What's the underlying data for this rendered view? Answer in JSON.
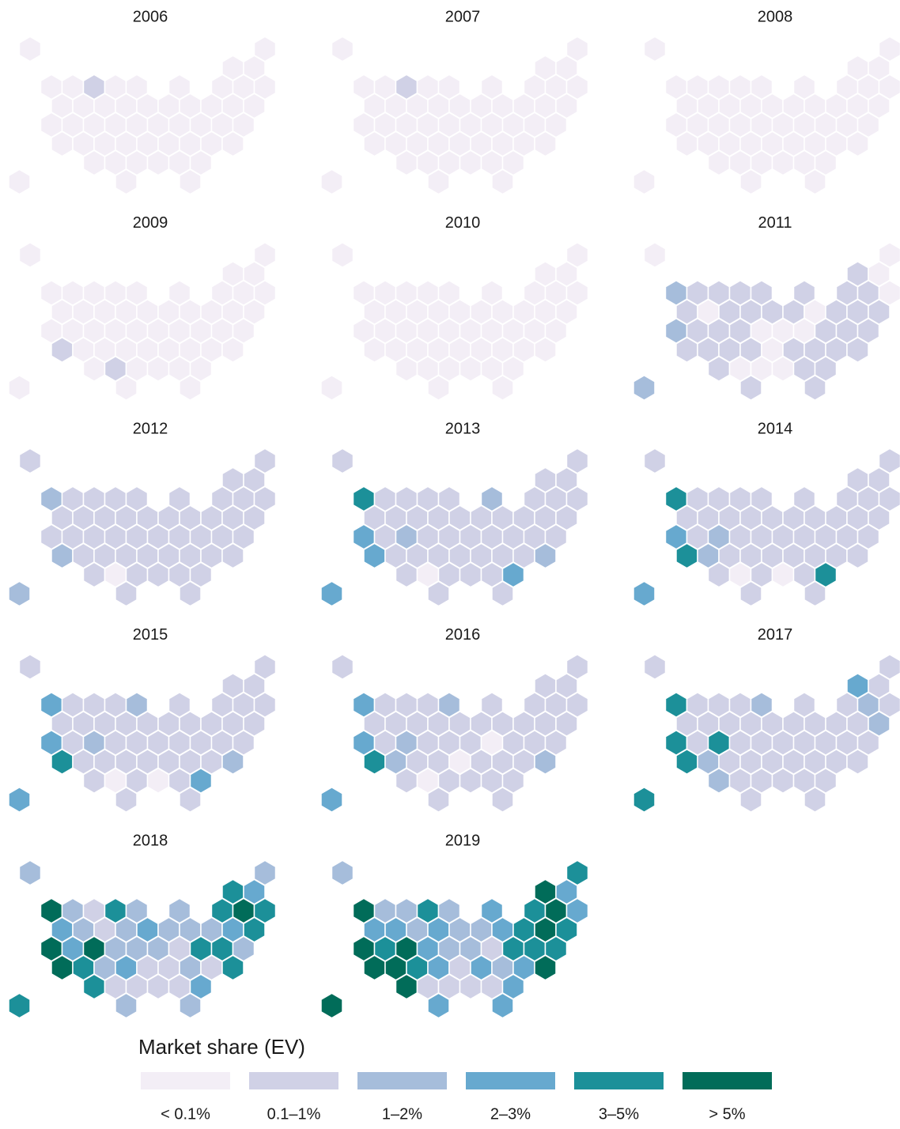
{
  "chart_data": {
    "type": "hexmap",
    "panels": [
      {
        "title": "2006",
        "values": [
          0,
          0,
          0,
          0,
          0,
          0,
          1,
          0,
          0,
          0,
          0,
          0,
          0,
          0,
          0,
          0,
          0,
          0,
          0,
          0,
          0,
          0,
          0,
          0,
          0,
          0,
          0,
          0,
          0,
          0,
          0,
          0,
          0,
          0,
          0,
          0,
          0,
          0,
          0,
          0,
          0,
          0,
          0,
          0,
          0,
          0,
          0,
          0,
          0,
          0,
          0
        ]
      },
      {
        "title": "2007",
        "values": [
          0,
          0,
          0,
          0,
          0,
          0,
          1,
          0,
          0,
          0,
          0,
          0,
          0,
          0,
          0,
          0,
          0,
          0,
          0,
          0,
          0,
          0,
          0,
          0,
          0,
          0,
          0,
          0,
          0,
          0,
          0,
          0,
          0,
          0,
          0,
          0,
          0,
          0,
          0,
          0,
          0,
          0,
          0,
          0,
          0,
          0,
          0,
          0,
          0,
          0,
          0
        ]
      },
      {
        "title": "2008",
        "values": [
          0,
          0,
          0,
          0,
          0,
          0,
          0,
          0,
          0,
          0,
          0,
          0,
          0,
          0,
          0,
          0,
          0,
          0,
          0,
          0,
          0,
          0,
          0,
          0,
          0,
          0,
          0,
          0,
          0,
          0,
          0,
          0,
          0,
          0,
          0,
          0,
          0,
          0,
          0,
          0,
          0,
          0,
          0,
          0,
          0,
          0,
          0,
          0,
          0,
          0,
          0
        ]
      },
      {
        "title": "2009",
        "values": [
          0,
          0,
          0,
          0,
          0,
          0,
          0,
          0,
          0,
          0,
          0,
          0,
          0,
          0,
          0,
          0,
          0,
          0,
          0,
          0,
          0,
          0,
          0,
          0,
          0,
          0,
          0,
          0,
          0,
          0,
          0,
          0,
          0,
          1,
          0,
          0,
          0,
          0,
          0,
          0,
          0,
          0,
          0,
          1,
          0,
          0,
          0,
          0,
          0,
          0,
          0
        ]
      },
      {
        "title": "2010",
        "values": [
          0,
          0,
          0,
          0,
          0,
          0,
          0,
          0,
          0,
          0,
          0,
          0,
          0,
          0,
          0,
          0,
          0,
          0,
          0,
          0,
          0,
          0,
          0,
          0,
          0,
          0,
          0,
          0,
          0,
          0,
          0,
          0,
          0,
          0,
          0,
          0,
          0,
          0,
          0,
          0,
          0,
          0,
          0,
          0,
          0,
          0,
          0,
          0,
          0,
          0,
          0
        ]
      },
      {
        "title": "2011",
        "values": [
          0,
          0,
          1,
          0,
          2,
          1,
          1,
          1,
          1,
          1,
          1,
          1,
          0,
          1,
          0,
          1,
          1,
          1,
          1,
          0,
          1,
          1,
          1,
          2,
          1,
          1,
          1,
          0,
          0,
          0,
          1,
          1,
          1,
          1,
          1,
          1,
          1,
          0,
          1,
          1,
          1,
          1,
          1,
          0,
          0,
          0,
          1,
          1,
          2,
          1,
          1
        ]
      },
      {
        "title": "2012",
        "values": [
          1,
          1,
          1,
          1,
          2,
          1,
          1,
          1,
          1,
          1,
          1,
          1,
          1,
          1,
          1,
          1,
          1,
          1,
          1,
          1,
          1,
          1,
          1,
          1,
          1,
          1,
          1,
          1,
          1,
          1,
          1,
          1,
          1,
          2,
          1,
          1,
          1,
          1,
          1,
          1,
          1,
          1,
          1,
          0,
          1,
          1,
          1,
          1,
          2,
          1,
          1
        ]
      },
      {
        "title": "2013",
        "values": [
          1,
          1,
          1,
          1,
          4,
          1,
          1,
          1,
          1,
          2,
          1,
          1,
          1,
          1,
          1,
          1,
          1,
          1,
          1,
          1,
          1,
          1,
          1,
          3,
          1,
          2,
          1,
          1,
          1,
          1,
          1,
          1,
          1,
          3,
          1,
          1,
          1,
          1,
          1,
          1,
          1,
          2,
          1,
          0,
          1,
          1,
          1,
          3,
          3,
          1,
          1
        ]
      },
      {
        "title": "2014",
        "values": [
          1,
          1,
          1,
          1,
          4,
          1,
          1,
          1,
          1,
          1,
          1,
          1,
          1,
          1,
          1,
          1,
          1,
          1,
          1,
          1,
          1,
          1,
          1,
          3,
          1,
          2,
          1,
          1,
          1,
          1,
          1,
          1,
          1,
          4,
          2,
          1,
          1,
          1,
          1,
          1,
          1,
          1,
          1,
          0,
          1,
          0,
          1,
          4,
          3,
          1,
          1
        ]
      },
      {
        "title": "2015",
        "values": [
          1,
          1,
          1,
          1,
          3,
          1,
          1,
          1,
          2,
          1,
          1,
          1,
          1,
          1,
          1,
          1,
          1,
          1,
          1,
          1,
          1,
          1,
          1,
          3,
          1,
          2,
          1,
          1,
          1,
          1,
          1,
          1,
          1,
          4,
          1,
          1,
          1,
          1,
          1,
          1,
          1,
          2,
          1,
          0,
          1,
          0,
          1,
          3,
          3,
          1,
          1
        ]
      },
      {
        "title": "2016",
        "values": [
          1,
          1,
          1,
          1,
          3,
          1,
          1,
          1,
          2,
          1,
          1,
          1,
          1,
          1,
          1,
          1,
          1,
          1,
          1,
          1,
          1,
          1,
          1,
          3,
          1,
          2,
          1,
          1,
          1,
          0,
          1,
          1,
          1,
          4,
          2,
          1,
          1,
          0,
          1,
          1,
          1,
          2,
          1,
          0,
          1,
          1,
          1,
          1,
          3,
          1,
          1
        ]
      },
      {
        "title": "2017",
        "values": [
          1,
          1,
          3,
          1,
          4,
          1,
          1,
          1,
          2,
          1,
          1,
          2,
          1,
          1,
          1,
          1,
          1,
          1,
          1,
          1,
          1,
          1,
          2,
          4,
          1,
          4,
          1,
          1,
          1,
          1,
          1,
          1,
          1,
          4,
          2,
          1,
          1,
          1,
          1,
          1,
          1,
          1,
          2,
          1,
          1,
          1,
          1,
          1,
          4,
          1,
          1
        ]
      },
      {
        "title": "2018",
        "values": [
          2,
          2,
          4,
          3,
          5,
          2,
          1,
          4,
          2,
          2,
          4,
          5,
          4,
          3,
          2,
          1,
          2,
          3,
          2,
          2,
          2,
          3,
          4,
          5,
          3,
          5,
          2,
          2,
          2,
          1,
          4,
          4,
          2,
          5,
          4,
          2,
          3,
          1,
          1,
          2,
          1,
          4,
          4,
          1,
          1,
          1,
          1,
          3,
          4,
          2,
          2
        ]
      },
      {
        "title": "2019",
        "values": [
          2,
          4,
          5,
          3,
          5,
          2,
          2,
          4,
          2,
          3,
          4,
          5,
          3,
          3,
          3,
          2,
          3,
          2,
          2,
          3,
          4,
          5,
          4,
          5,
          4,
          5,
          3,
          2,
          2,
          1,
          4,
          4,
          4,
          5,
          5,
          4,
          3,
          1,
          3,
          2,
          3,
          5,
          5,
          1,
          1,
          1,
          1,
          3,
          5,
          3,
          3
        ]
      }
    ],
    "legend_title": "Market share (EV)",
    "bins": [
      {
        "label": "< 0.1%",
        "color": "#f3eef6"
      },
      {
        "label": "0.1–1%",
        "color": "#d0d1e6"
      },
      {
        "label": "1–2%",
        "color": "#a6bddb"
      },
      {
        "label": "2–3%",
        "color": "#67a9cf"
      },
      {
        "label": "3–5%",
        "color": "#1c9099"
      },
      {
        "label": "> 5%",
        "color": "#016c59"
      }
    ]
  }
}
